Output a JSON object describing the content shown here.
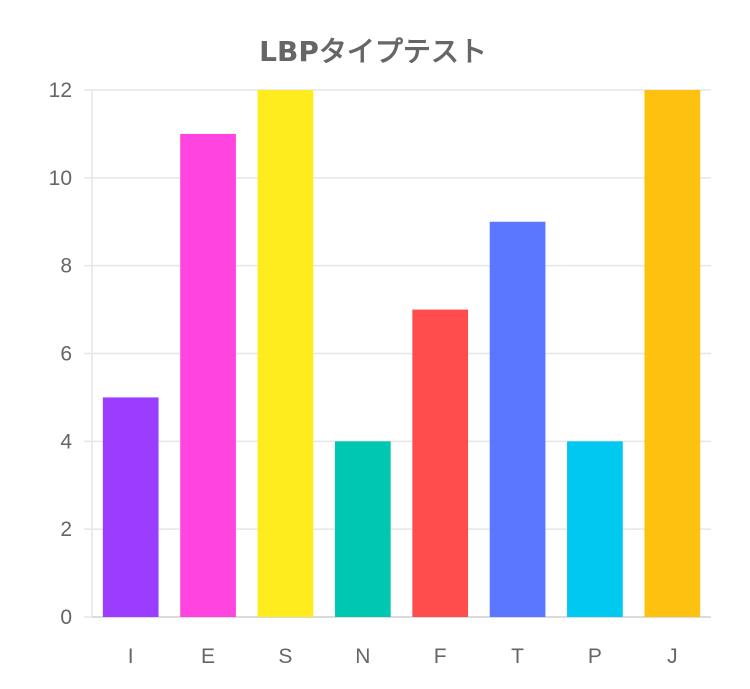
{
  "chart_data": {
    "type": "bar",
    "title": "LBPタイプテスト",
    "categories": [
      "I",
      "E",
      "S",
      "N",
      "F",
      "T",
      "P",
      "J"
    ],
    "values": [
      5,
      11,
      12,
      4,
      7,
      9,
      4,
      12
    ],
    "colors": [
      "#9b3dff",
      "#ff44e0",
      "#ffec1f",
      "#00c8b0",
      "#ff4d4d",
      "#5b77ff",
      "#00c8f0",
      "#ffc10f"
    ],
    "ylim": [
      0,
      12
    ],
    "yticks": [
      0,
      2,
      4,
      6,
      8,
      10,
      12
    ],
    "xlabel": "",
    "ylabel": "",
    "grid": true,
    "legend": "none"
  }
}
